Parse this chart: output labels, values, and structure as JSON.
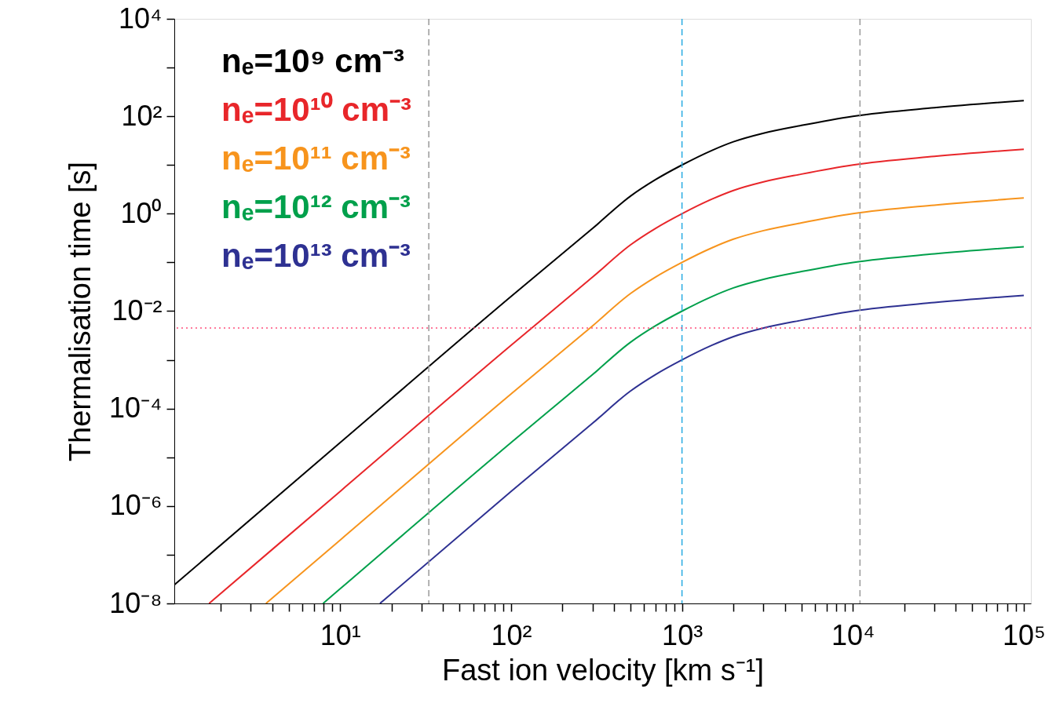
{
  "chart_data": {
    "type": "line",
    "xlabel": "Fast ion velocity [km s⁻¹]",
    "ylabel": "Thermalisation time  [s]",
    "log": "xy",
    "grid": false,
    "legend": "top left",
    "line_style": "solid",
    "marker": "none",
    "xlim": [
      1.07,
      110000
    ],
    "ylim": [
      1e-08,
      10000
    ],
    "xticks": [
      {
        "value": 2,
        "label": null
      },
      {
        "value": 3,
        "label": null
      },
      {
        "value": 4,
        "label": null
      },
      {
        "value": 5,
        "label": null
      },
      {
        "value": 6,
        "label": null
      },
      {
        "value": 7,
        "label": null
      },
      {
        "value": 8,
        "label": null
      },
      {
        "value": 9,
        "label": null
      },
      {
        "value": 10,
        "label": "10¹"
      },
      {
        "value": 20,
        "label": null
      },
      {
        "value": 30,
        "label": null
      },
      {
        "value": 40,
        "label": null
      },
      {
        "value": 50,
        "label": null
      },
      {
        "value": 60,
        "label": null
      },
      {
        "value": 70,
        "label": null
      },
      {
        "value": 80,
        "label": null
      },
      {
        "value": 90,
        "label": null
      },
      {
        "value": 100,
        "label": "10²"
      },
      {
        "value": 200,
        "label": null
      },
      {
        "value": 300,
        "label": null
      },
      {
        "value": 400,
        "label": null
      },
      {
        "value": 500,
        "label": null
      },
      {
        "value": 600,
        "label": null
      },
      {
        "value": 700,
        "label": null
      },
      {
        "value": 800,
        "label": null
      },
      {
        "value": 900,
        "label": null
      },
      {
        "value": 1000,
        "label": "10³"
      },
      {
        "value": 2000,
        "label": null
      },
      {
        "value": 3000,
        "label": null
      },
      {
        "value": 4000,
        "label": null
      },
      {
        "value": 5000,
        "label": null
      },
      {
        "value": 6000,
        "label": null
      },
      {
        "value": 7000,
        "label": null
      },
      {
        "value": 8000,
        "label": null
      },
      {
        "value": 9000,
        "label": null
      },
      {
        "value": 10000,
        "label": "10⁴"
      },
      {
        "value": 20000,
        "label": null
      },
      {
        "value": 30000,
        "label": null
      },
      {
        "value": 40000,
        "label": null
      },
      {
        "value": 50000,
        "label": null
      },
      {
        "value": 60000,
        "label": null
      },
      {
        "value": 70000,
        "label": null
      },
      {
        "value": 80000,
        "label": null
      },
      {
        "value": 90000,
        "label": null
      },
      {
        "value": 100000,
        "label": "10⁵"
      }
    ],
    "yticks": [
      {
        "value": 1e-08,
        "label": "10⁻⁸"
      },
      {
        "value": 1e-07,
        "label": null
      },
      {
        "value": 1e-06,
        "label": "10⁻⁶"
      },
      {
        "value": 1e-05,
        "label": null
      },
      {
        "value": 0.0001,
        "label": "10⁻⁴"
      },
      {
        "value": 0.001,
        "label": null
      },
      {
        "value": 0.01,
        "label": "10⁻²"
      },
      {
        "value": 0.1,
        "label": null
      },
      {
        "value": 1,
        "label": "10⁰"
      },
      {
        "value": 10,
        "label": null
      },
      {
        "value": 100,
        "label": "10²"
      },
      {
        "value": 1000,
        "label": null
      },
      {
        "value": 10000,
        "label": "10⁴"
      }
    ],
    "series": [
      {
        "name": "nₑ=10⁹ cm⁻³",
        "color": "#000000",
        "x": [
          1.07,
          10,
          100,
          300,
          500,
          700,
          1000,
          1500,
          2000,
          3000,
          5000,
          10000,
          30000,
          100000
        ],
        "values": [
          2.4e-08,
          2e-05,
          0.02,
          0.5,
          2.3,
          5,
          10,
          20,
          30,
          45,
          65,
          100,
          150,
          210
        ]
      },
      {
        "name": "nₑ=10¹⁰ cm⁻³",
        "color": "#e8262a",
        "x": [
          1.71,
          10,
          100,
          300,
          500,
          700,
          1000,
          1500,
          2000,
          3000,
          5000,
          10000,
          30000,
          100000
        ],
        "values": [
          1e-08,
          2e-06,
          0.002,
          0.05,
          0.23,
          0.5,
          1,
          2,
          3,
          4.5,
          6.5,
          10,
          15,
          21
        ]
      },
      {
        "name": "nₑ=10¹¹ cm⁻³",
        "color": "#f7941d",
        "x": [
          3.68,
          10,
          100,
          300,
          500,
          700,
          1000,
          1500,
          2000,
          3000,
          5000,
          10000,
          30000,
          100000
        ],
        "values": [
          1e-08,
          2e-07,
          0.0002,
          0.005,
          0.023,
          0.05,
          0.1,
          0.2,
          0.3,
          0.45,
          0.65,
          1,
          1.5,
          2.1
        ]
      },
      {
        "name": "nₑ=10¹² cm⁻³",
        "color": "#00a04b",
        "x": [
          7.94,
          10,
          100,
          300,
          500,
          700,
          1000,
          1500,
          2000,
          3000,
          5000,
          10000,
          30000,
          100000
        ],
        "values": [
          1e-08,
          2e-08,
          2e-05,
          0.0005,
          0.0023,
          0.005,
          0.01,
          0.02,
          0.03,
          0.045,
          0.065,
          0.1,
          0.15,
          0.21
        ]
      },
      {
        "name": "nₑ=10¹³ cm⁻³",
        "color": "#2e3192",
        "x": [
          17.1,
          100,
          300,
          500,
          700,
          1000,
          1500,
          2000,
          3000,
          5000,
          10000,
          30000,
          100000
        ],
        "values": [
          1e-08,
          2e-06,
          5e-05,
          0.00023,
          0.0005,
          0.001,
          0.002,
          0.003,
          0.0045,
          0.0065,
          0.01,
          0.015,
          0.021
        ]
      }
    ],
    "ref_lines": [
      {
        "axis": "x",
        "value": 33,
        "color": "#999999",
        "line_style": "dashed"
      },
      {
        "axis": "x",
        "value": 1000,
        "color": "#29abe2",
        "line_style": "dashed"
      },
      {
        "axis": "x",
        "value": 11000,
        "color": "#999999",
        "line_style": "dashed"
      },
      {
        "axis": "y",
        "value": 0.0045,
        "color": "#ff4f7b",
        "line_style": "dotted"
      }
    ]
  }
}
